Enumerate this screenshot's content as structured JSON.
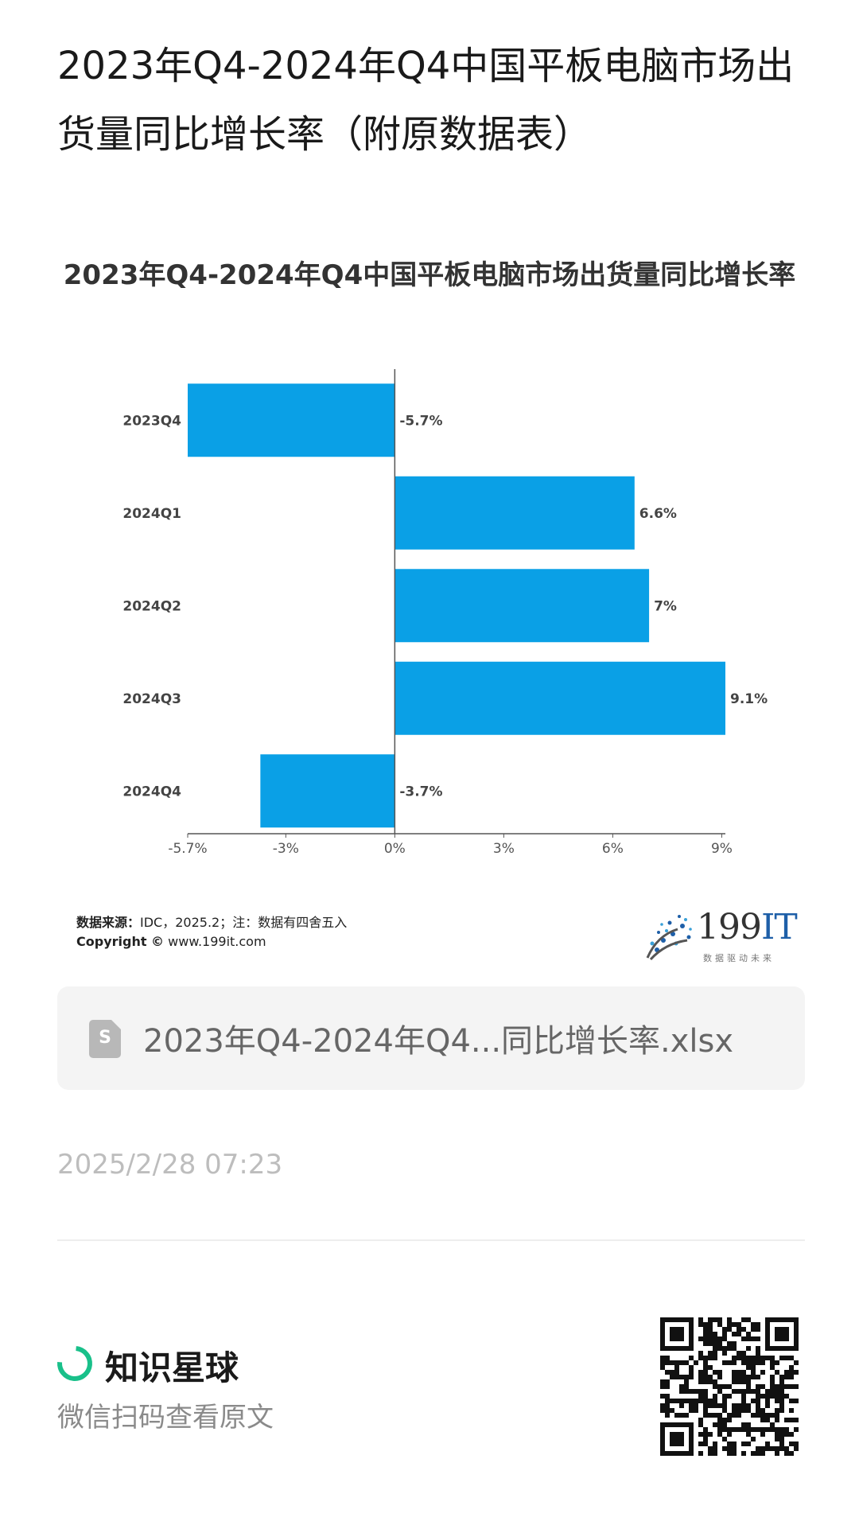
{
  "page": {
    "title": "2023年Q4-2024年Q4中国平板电脑市场出货量同比增长率（附原数据表）",
    "source_label": "数据来源：",
    "source_text": "IDC，2025.2；注：数据有四舍五入",
    "copyright_label": "Copyright ©",
    "copyright_text": " www.199it.com",
    "logo_num": "199",
    "logo_it": "IT",
    "logo_tagline": "数据驱动未来",
    "file_icon_letter": "S",
    "file_name": "2023年Q4-2024年Q4...同比增长率.xlsx",
    "timestamp": "2025/2/28 07:23",
    "brand_name": "知识星球",
    "scan_hint": "微信扫码查看原文",
    "icons": {
      "file": "spreadsheet-file-icon",
      "brand": "zsxq-logo-icon",
      "qr": "qr-code-icon"
    }
  },
  "chart_data": {
    "type": "bar",
    "orientation": "horizontal",
    "title": "2023年Q4-2024年Q4中国平板电脑市场出货量同比增长率",
    "categories": [
      "2023Q4",
      "2024Q1",
      "2024Q2",
      "2024Q3",
      "2024Q4"
    ],
    "values": [
      -5.7,
      6.6,
      7.0,
      9.1,
      -3.7
    ],
    "data_labels": [
      "-5.7%",
      "6.6%",
      "7%",
      "9.1%",
      "-3.7%"
    ],
    "xlim": [
      -5.7,
      9.1
    ],
    "ticks": [
      {
        "value": -5.7,
        "label": "-5.7%"
      },
      {
        "value": -3,
        "label": "-3%"
      },
      {
        "value": 0,
        "label": "0%"
      },
      {
        "value": 3,
        "label": "3%"
      },
      {
        "value": 6,
        "label": "6%"
      },
      {
        "value": 9,
        "label": "9%"
      }
    ],
    "bar_color": "#0aa0e6",
    "grid": false,
    "legend": "none"
  }
}
